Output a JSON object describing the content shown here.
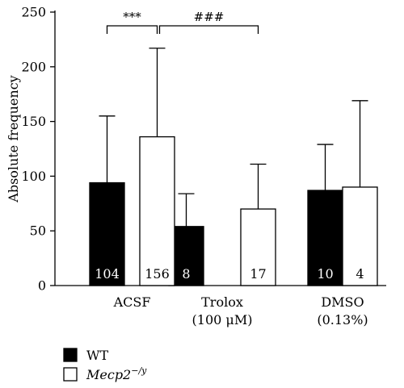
{
  "chart_data": {
    "type": "bar",
    "ylabel": "Absolute frequency",
    "ylim": [
      0,
      250
    ],
    "yticks": [
      0,
      50,
      100,
      150,
      200,
      250
    ],
    "groups": [
      {
        "label": "ACSF",
        "sublabel": ""
      },
      {
        "label": "Trolox",
        "sublabel": "(100 μM)"
      },
      {
        "label": "DMSO",
        "sublabel": "(0.13%)"
      }
    ],
    "series": [
      {
        "name": "WT",
        "color": "#000000",
        "values": [
          94,
          54,
          87
        ],
        "errors": [
          61,
          30,
          42
        ],
        "n": [
          "104",
          "8",
          "10"
        ]
      },
      {
        "name": "Mecp2",
        "name_superscript": "−/y",
        "color": "#ffffff",
        "values": [
          136,
          70,
          90
        ],
        "errors": [
          81,
          41,
          79
        ],
        "n": [
          "156",
          "17",
          "4"
        ]
      }
    ],
    "significance": [
      {
        "text": "***",
        "from": [
          0,
          0
        ],
        "to": [
          0,
          1
        ]
      },
      {
        "text": "###",
        "from": [
          0,
          1
        ],
        "to": [
          1,
          1
        ]
      }
    ],
    "legend_position": "bottom-left"
  }
}
